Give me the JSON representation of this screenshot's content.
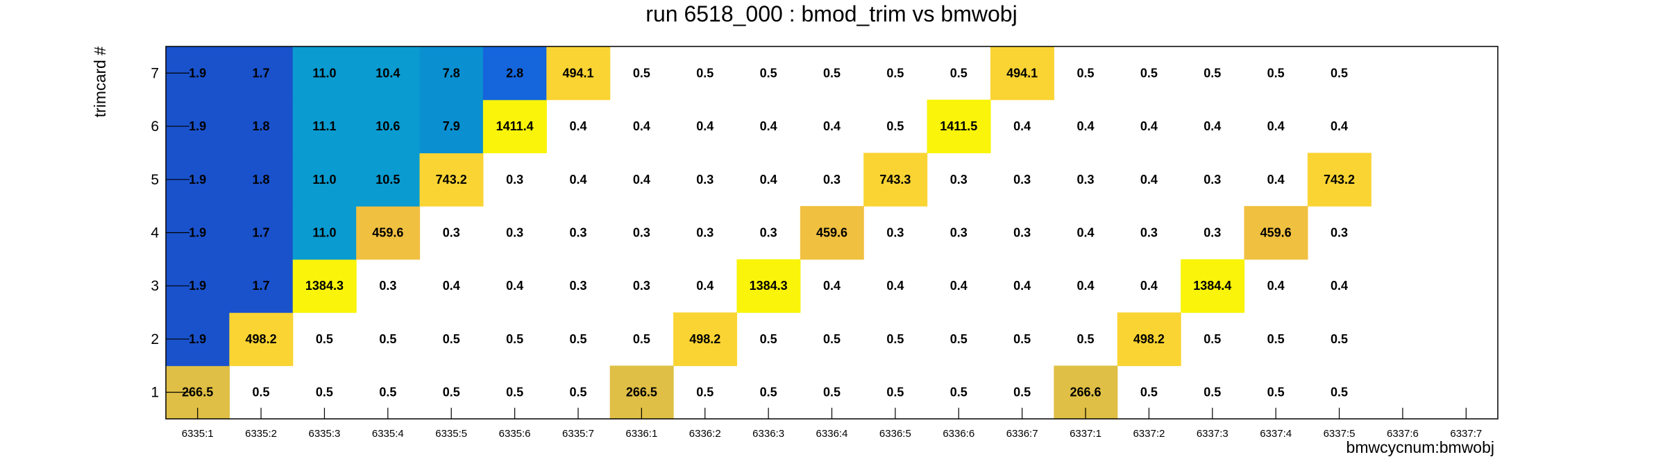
{
  "chart_data": {
    "type": "heatmap",
    "title": "run 6518_000 : bmod_trim vs bmwobj",
    "xlabel": "bmwcycnum:bmwobj",
    "ylabel": "trimcard #",
    "x_categories": [
      "6335:1",
      "6335:2",
      "6335:3",
      "6335:4",
      "6335:5",
      "6335:6",
      "6335:7",
      "6336:1",
      "6336:2",
      "6336:3",
      "6336:4",
      "6336:5",
      "6336:6",
      "6336:7",
      "6337:1",
      "6337:2",
      "6337:3",
      "6337:4",
      "6337:5",
      "6337:6",
      "6337:7"
    ],
    "y_categories": [
      "1",
      "2",
      "3",
      "4",
      "5",
      "6",
      "7"
    ],
    "values": [
      [
        "266.5",
        "0.5",
        "0.5",
        "0.5",
        "0.5",
        "0.5",
        "0.5",
        "266.5",
        "0.5",
        "0.5",
        "0.5",
        "0.5",
        "0.5",
        "0.5",
        "266.6",
        "0.5",
        "0.5",
        "0.5",
        "0.5",
        null,
        null
      ],
      [
        "1.9",
        "498.2",
        "0.5",
        "0.5",
        "0.5",
        "0.5",
        "0.5",
        "0.5",
        "498.2",
        "0.5",
        "0.5",
        "0.5",
        "0.5",
        "0.5",
        "0.5",
        "498.2",
        "0.5",
        "0.5",
        "0.5",
        null,
        null
      ],
      [
        "1.9",
        "1.7",
        "1384.3",
        "0.3",
        "0.4",
        "0.4",
        "0.3",
        "0.3",
        "0.4",
        "1384.3",
        "0.4",
        "0.4",
        "0.4",
        "0.4",
        "0.4",
        "0.4",
        "1384.4",
        "0.4",
        "0.4",
        null,
        null
      ],
      [
        "1.9",
        "1.7",
        "11.0",
        "459.6",
        "0.3",
        "0.3",
        "0.3",
        "0.3",
        "0.3",
        "0.3",
        "459.6",
        "0.3",
        "0.3",
        "0.3",
        "0.4",
        "0.3",
        "0.3",
        "459.6",
        "0.3",
        null,
        null
      ],
      [
        "1.9",
        "1.8",
        "11.0",
        "10.5",
        "743.2",
        "0.3",
        "0.4",
        "0.4",
        "0.3",
        "0.4",
        "0.3",
        "743.3",
        "0.3",
        "0.3",
        "0.3",
        "0.4",
        "0.3",
        "0.4",
        "743.2",
        null,
        null
      ],
      [
        "1.9",
        "1.8",
        "11.1",
        "10.6",
        "7.9",
        "1411.4",
        "0.4",
        "0.4",
        "0.4",
        "0.4",
        "0.4",
        "0.5",
        "1411.5",
        "0.4",
        "0.4",
        "0.4",
        "0.4",
        "0.4",
        "0.4",
        null,
        null
      ],
      [
        "1.9",
        "1.7",
        "11.0",
        "10.4",
        "7.8",
        "2.8",
        "494.1",
        "0.5",
        "0.5",
        "0.5",
        "0.5",
        "0.5",
        "0.5",
        "494.1",
        "0.5",
        "0.5",
        "0.5",
        "0.5",
        "0.5",
        null,
        null
      ]
    ],
    "color_scale": {
      "low": "#ffffff",
      "small": "#1a52cc",
      "medium": "#0a9bd0",
      "mid_high": "#e0c040",
      "high": "#f9f40a"
    },
    "grid": false,
    "legend": "none"
  }
}
